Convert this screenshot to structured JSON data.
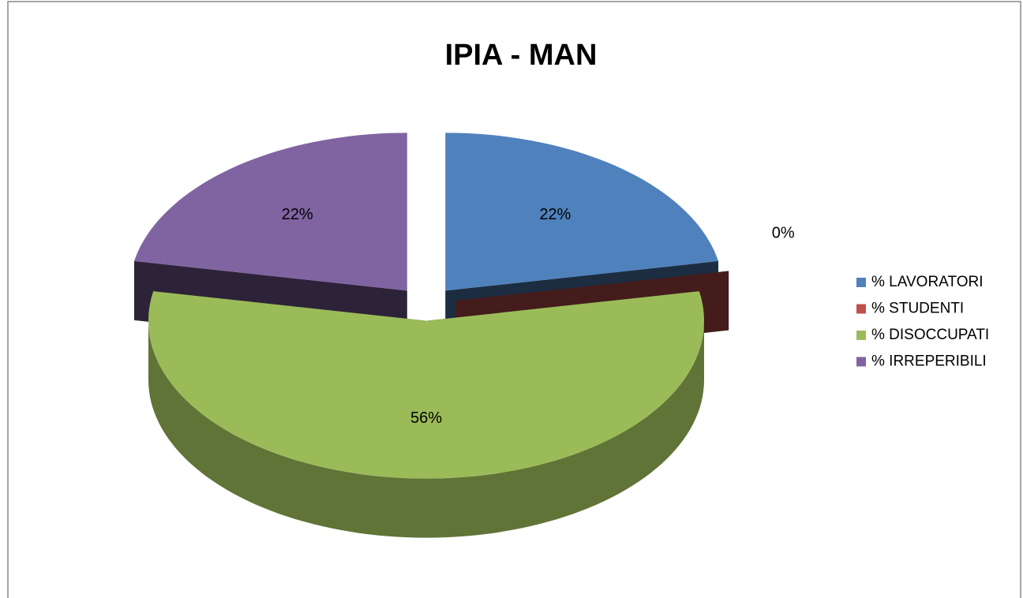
{
  "chart_data": {
    "type": "pie",
    "title": "IPIA - MAN",
    "categories": [
      "% LAVORATORI",
      "% STUDENTI",
      "% DISOCCUPATI",
      "% IRREPERIBILI"
    ],
    "values": [
      22,
      0,
      56,
      22
    ],
    "value_labels": [
      "22%",
      "0%",
      "56%",
      "22%"
    ],
    "colors": [
      "#4f81bd",
      "#c0504d",
      "#9bbb59",
      "#8064a2"
    ],
    "legend": "right"
  }
}
